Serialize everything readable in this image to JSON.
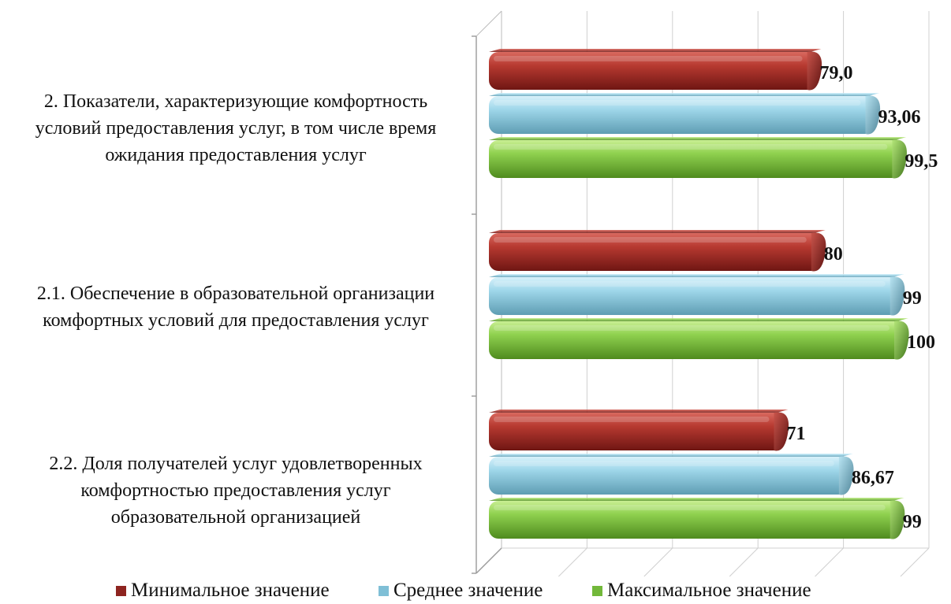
{
  "chart_data": {
    "type": "bar",
    "orientation": "horizontal",
    "style": "3d-cylinder",
    "categories": [
      "2. Показатели, характеризующие комфортность\nусловий предоставления услуг, в том числе время\nожидания предоставления услуг",
      "2.1. Обеспечение в образовательной организации\nкомфортных условий для предоставления услуг",
      "2.2. Доля получателей услуг удовлетворенных\nкомфортностью предоставления услуг\nобразовательной организацией"
    ],
    "series": [
      {
        "name": "Минимальное значение",
        "color": "#b0302c",
        "values": [
          79.0,
          80,
          71
        ],
        "labels": [
          "79,0",
          "80",
          "71"
        ]
      },
      {
        "name": "Среднее значение",
        "color": "#8fd0e6",
        "values": [
          93.06,
          99,
          86.67
        ],
        "labels": [
          "93,06",
          "99",
          "86,67"
        ]
      },
      {
        "name": "Максимальное значение",
        "color": "#8fd14f",
        "values": [
          99.5,
          100,
          99
        ],
        "labels": [
          "99,5",
          "100",
          "99"
        ]
      }
    ],
    "xlim": [
      0,
      100
    ],
    "grid": true,
    "legend": "bottom"
  }
}
